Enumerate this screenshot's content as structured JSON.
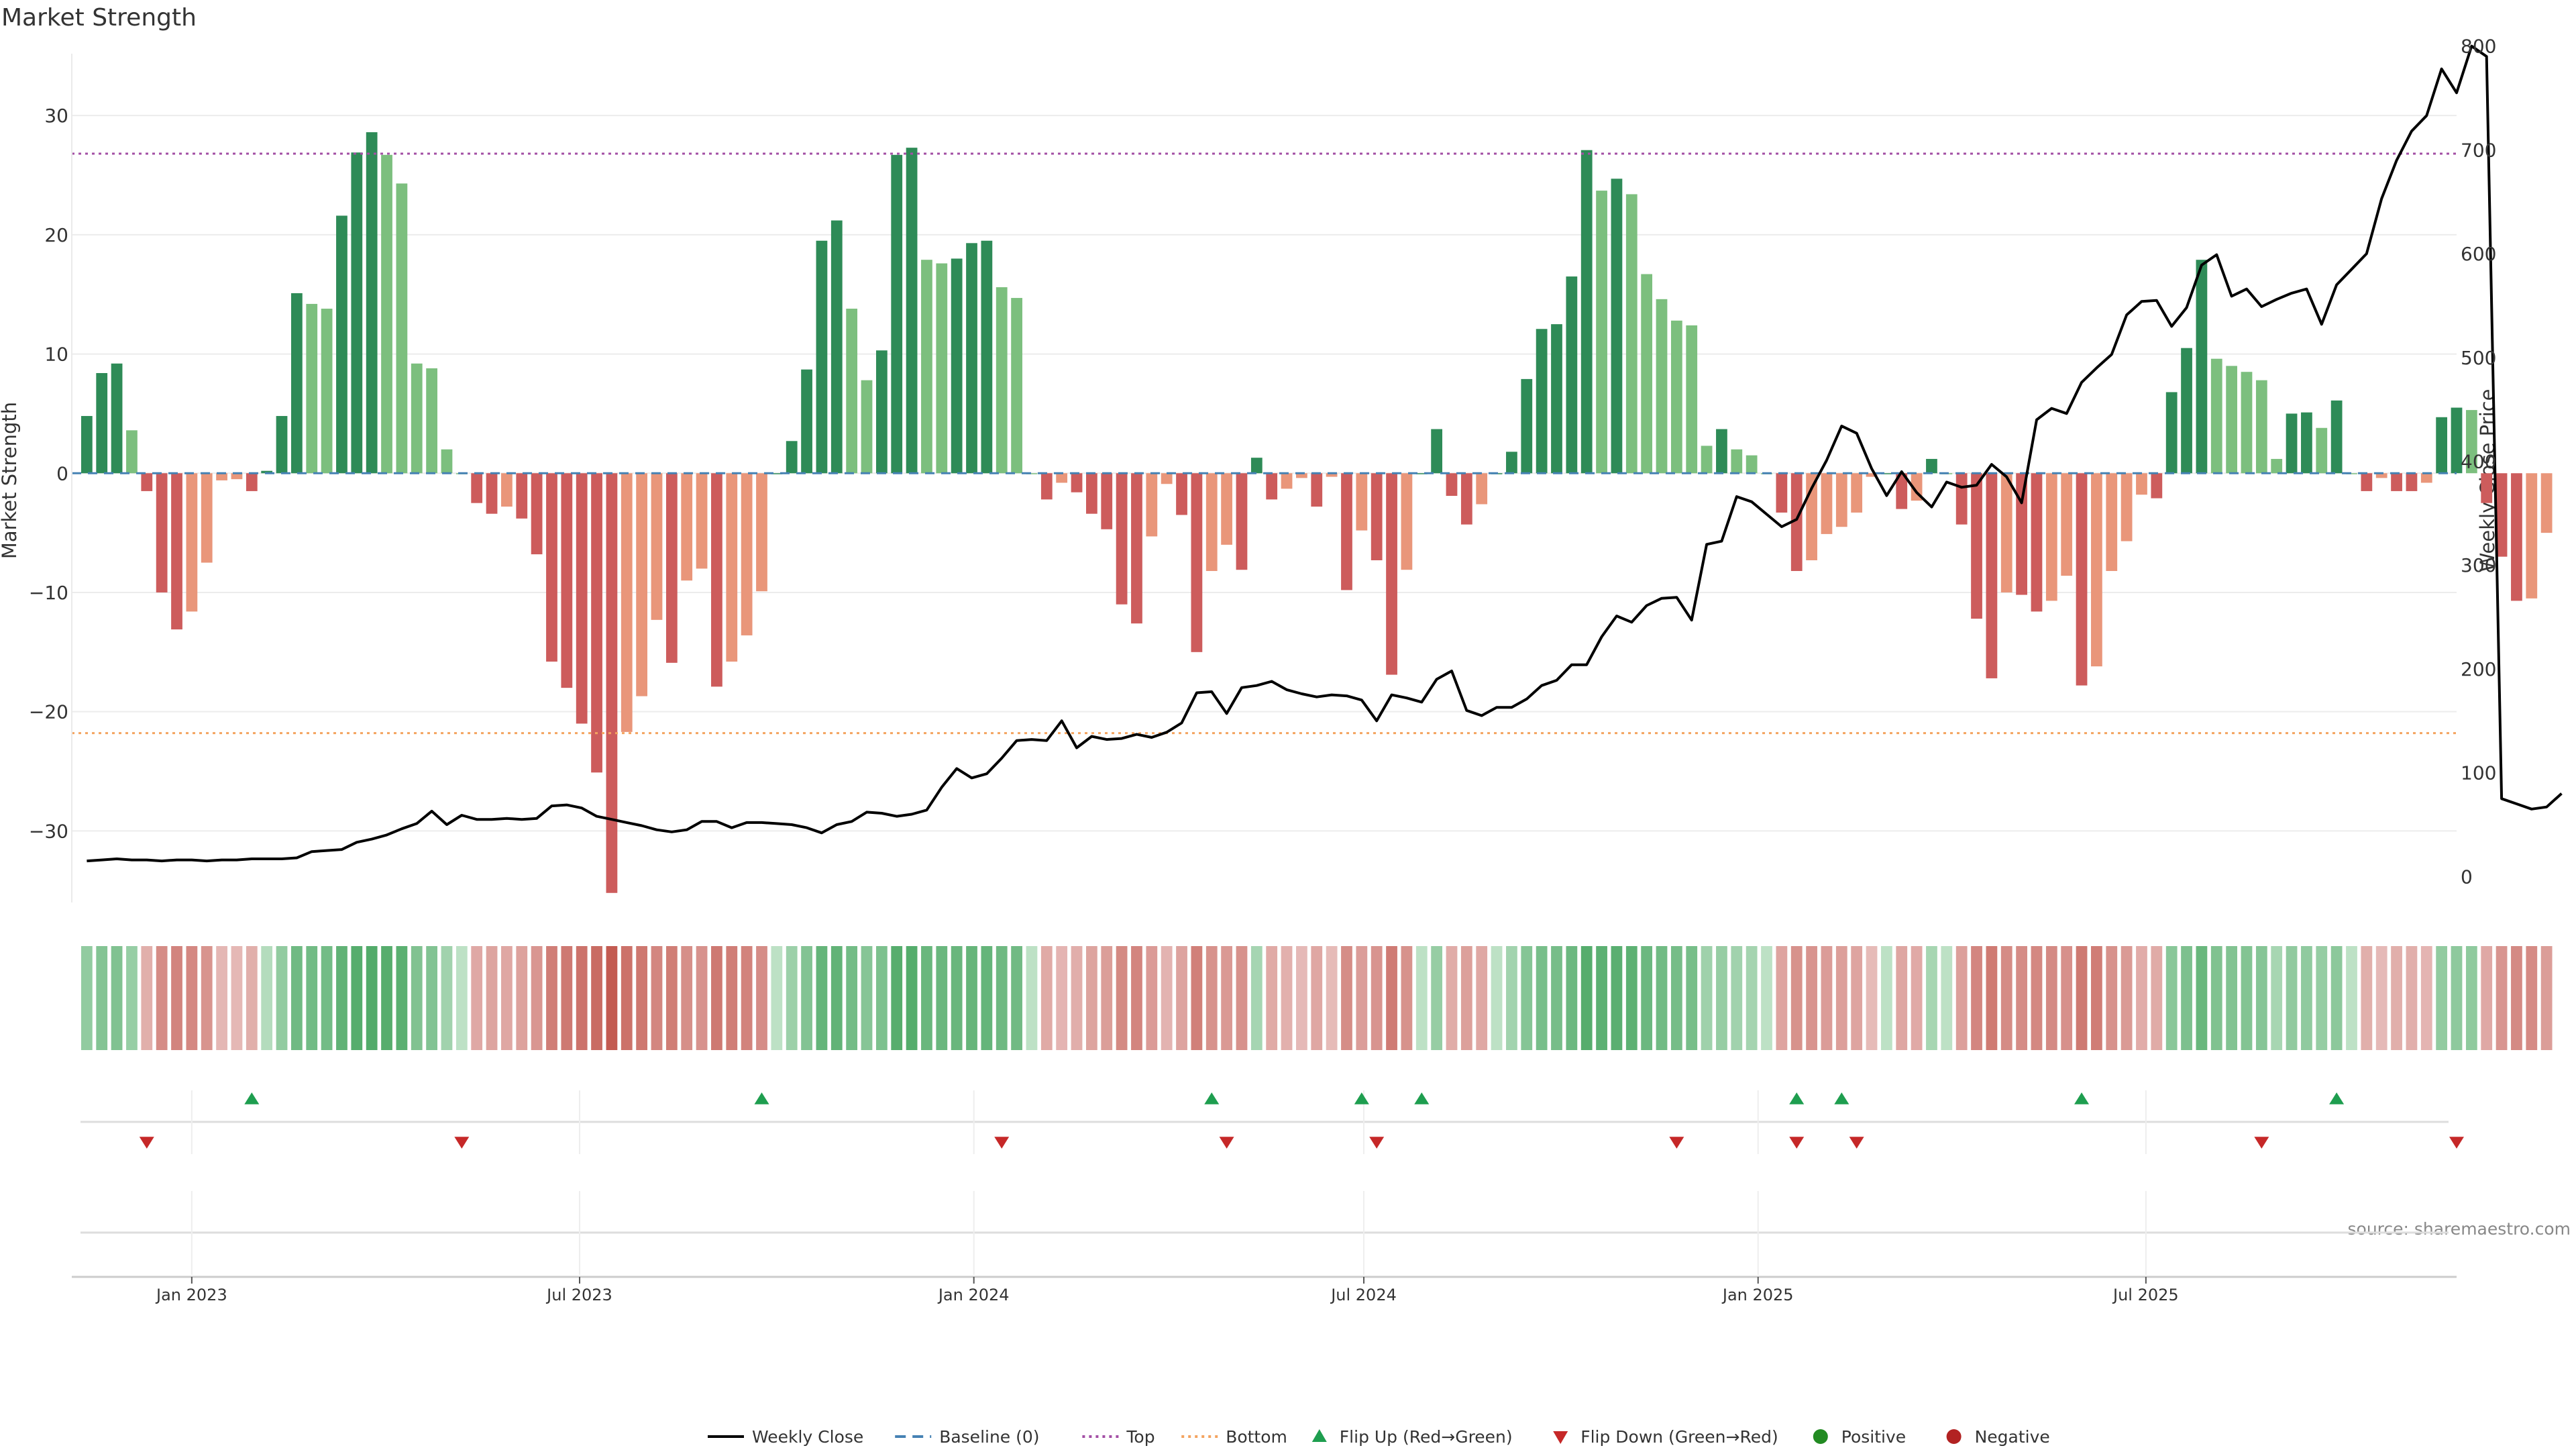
{
  "chart_data": {
    "type": "bar",
    "title": "Market Strength",
    "ylabel": "Market Strength",
    "y2label": "Weekly Close Price",
    "ylim": [
      -36,
      38
    ],
    "y2lim": [
      -25,
      825
    ],
    "yticks": [
      -30,
      -20,
      -10,
      0,
      10,
      20,
      30
    ],
    "y2ticks": [
      0,
      100,
      200,
      300,
      400,
      500,
      600,
      700,
      800
    ],
    "x_start": "2022-11-06",
    "x_end": "2025-11-23",
    "x_ticks": [
      {
        "date": "2023-01-01",
        "label": "Jan 2023"
      },
      {
        "date": "2023-07-01",
        "label": "Jul 2023"
      },
      {
        "date": "2024-01-01",
        "label": "Jan 2024"
      },
      {
        "date": "2024-07-01",
        "label": "Jul 2024"
      },
      {
        "date": "2025-01-01",
        "label": "Jan 2025"
      },
      {
        "date": "2025-07-01",
        "label": "Jul 2025"
      }
    ],
    "first_week": "2022-11-13",
    "top_level": 26.8,
    "bottom_level": -21.8,
    "colors": {
      "pos_strong": "#2e8b57",
      "pos_weak": "#7cbf7e",
      "neg_strong": "#cd5c5c",
      "neg_weak": "#e9967a",
      "baseline": "#4682b4",
      "top": "#a34fa5",
      "bottom": "#f4a460",
      "close": "#000000",
      "flip_up": "#1e9e4f",
      "flip_down": "#c62828",
      "positive": "#228b22",
      "negative": "#b22222"
    },
    "strength": [
      4.8,
      8.4,
      9.2,
      3.6,
      -1.5,
      -10.0,
      -13.1,
      -11.6,
      -7.5,
      -0.6,
      -0.5,
      -1.5,
      0.2,
      4.8,
      15.1,
      14.2,
      13.8,
      21.6,
      26.9,
      28.6,
      26.7,
      24.3,
      9.2,
      8.8,
      2.0,
      0.0,
      -2.5,
      -3.4,
      -2.8,
      -3.8,
      -6.8,
      -15.8,
      -18.0,
      -21.0,
      -25.1,
      -35.2,
      -21.7,
      -18.7,
      -12.3,
      -15.9,
      -9.0,
      -8.0,
      -17.9,
      -15.8,
      -13.6,
      -9.9,
      0.0,
      2.7,
      8.7,
      19.5,
      21.2,
      13.8,
      7.8,
      10.3,
      26.7,
      27.3,
      17.9,
      17.6,
      18.0,
      19.3,
      19.5,
      15.6,
      14.7,
      0.0,
      -2.2,
      -0.8,
      -1.6,
      -3.4,
      -4.7,
      -11.0,
      -12.6,
      -5.3,
      -0.9,
      -3.5,
      -15.0,
      -8.2,
      -6.0,
      -8.1,
      1.3,
      -2.2,
      -1.3,
      -0.4,
      -2.8,
      -0.3,
      -9.8,
      -4.8,
      -7.3,
      -16.9,
      -8.1,
      0.0,
      3.7,
      -1.9,
      -4.3,
      -2.6,
      0.0,
      1.8,
      7.9,
      12.1,
      12.5,
      16.5,
      27.1,
      23.7,
      24.7,
      23.4,
      16.7,
      14.6,
      12.8,
      12.4,
      2.3,
      3.7,
      2.0,
      1.5,
      0.0,
      -3.3,
      -8.2,
      -7.3,
      -5.1,
      -4.5,
      -3.3,
      -0.3,
      0.0,
      -3.0,
      -2.3,
      1.2,
      0.0,
      -4.3,
      -12.2,
      -17.2,
      -10.0,
      -10.2,
      -11.6,
      -10.7,
      -8.6,
      -17.8,
      -16.2,
      -8.2,
      -5.7,
      -1.8,
      -2.1,
      6.8,
      10.5,
      17.9,
      9.6,
      9.0,
      8.5,
      7.8,
      1.2,
      5.0,
      5.1,
      3.8,
      6.1,
      0.0,
      -1.5,
      -0.4,
      -1.5,
      -1.5,
      -0.8,
      4.7,
      5.5,
      5.3,
      -2.5,
      -7.0,
      -10.7,
      -10.5,
      -5.0
    ],
    "close": [
      15,
      16,
      17,
      16,
      16,
      15,
      16,
      16,
      15,
      16,
      16,
      17,
      17,
      17,
      18,
      24,
      25,
      26,
      33,
      36,
      40,
      46,
      51,
      63,
      50,
      59,
      55,
      55,
      56,
      55,
      56,
      68,
      69,
      66,
      58,
      55,
      52,
      49,
      45,
      43,
      45,
      53,
      53,
      47,
      52,
      52,
      51,
      50,
      47,
      42,
      50,
      53,
      62,
      61,
      58,
      60,
      64,
      86,
      104,
      95,
      99,
      114,
      131,
      132,
      131,
      150,
      124,
      135,
      132,
      133,
      137,
      134,
      139,
      148,
      177,
      178,
      157,
      182,
      184,
      188,
      180,
      176,
      173,
      175,
      174,
      170,
      150,
      175,
      172,
      168,
      190,
      198,
      160,
      155,
      163,
      163,
      171,
      184,
      189,
      204,
      204,
      231,
      251,
      245,
      261,
      268,
      269,
      247,
      320,
      323,
      366,
      361,
      349,
      337,
      344,
      374,
      401,
      434,
      427,
      393,
      367,
      390,
      370,
      356,
      380,
      375,
      377,
      397,
      385,
      360,
      440,
      451,
      446,
      476,
      490,
      503,
      541,
      554,
      555,
      530,
      548,
      589,
      599,
      559,
      566,
      549,
      556,
      562,
      566,
      532,
      570,
      585,
      600,
      653,
      690,
      718,
      733,
      778,
      755,
      800,
      790,
      75,
      70,
      65,
      67,
      80
    ],
    "flip_up_weeks": [
      11,
      45,
      75,
      85,
      89,
      114,
      117,
      133,
      150
    ],
    "flip_down_weeks": [
      4,
      25,
      61,
      76,
      86,
      106,
      114,
      118,
      145,
      158
    ],
    "source_text": "source: sharemaestro.com",
    "legend": [
      {
        "label": "Weekly Close",
        "kind": "line"
      },
      {
        "label": "Baseline (0)",
        "kind": "dash"
      },
      {
        "label": "Top",
        "kind": "dot-top"
      },
      {
        "label": "Bottom",
        "kind": "dot-bottom"
      },
      {
        "label": "Flip Up (Red→Green)",
        "kind": "tri-up"
      },
      {
        "label": "Flip Down (Green→Red)",
        "kind": "tri-down"
      },
      {
        "label": "Positive",
        "kind": "circle-pos"
      },
      {
        "label": "Negative",
        "kind": "circle-neg"
      }
    ]
  }
}
